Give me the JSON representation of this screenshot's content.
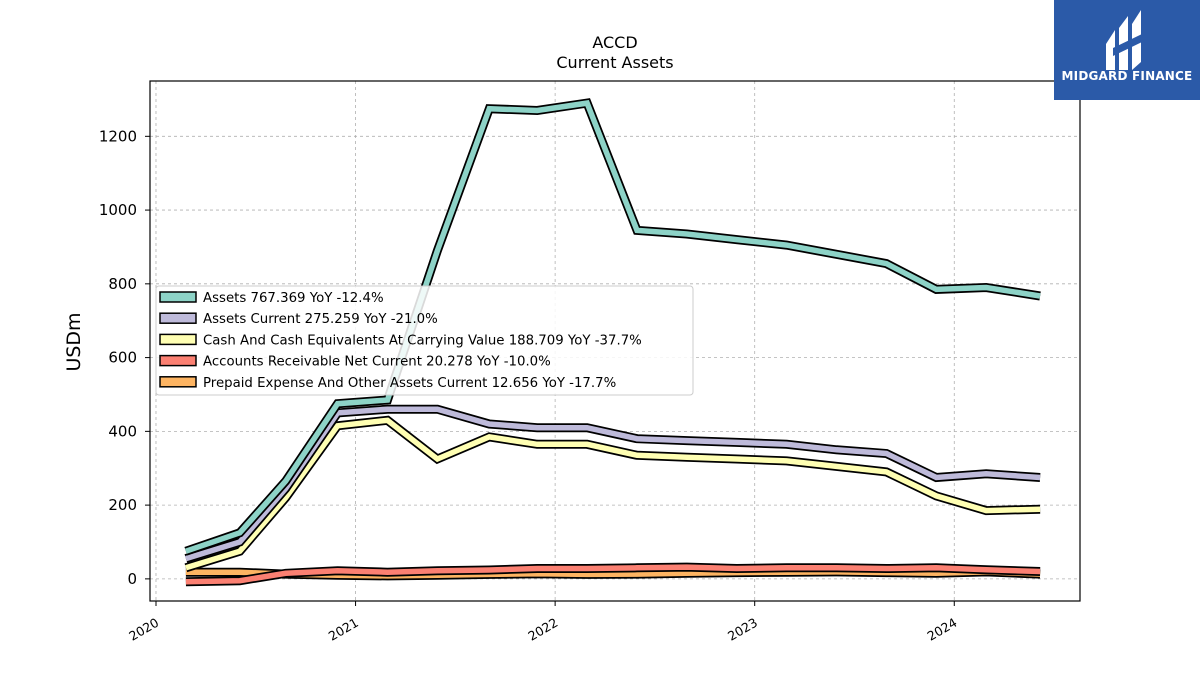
{
  "chart_data": {
    "type": "line",
    "title": "ACCD",
    "subtitle": "Current  Assets",
    "ylabel": "USDm",
    "xlabel": "",
    "ylim": [
      -60,
      1350
    ],
    "xlim": [
      2019.97,
      2024.63
    ],
    "yticks": [
      0,
      200,
      400,
      600,
      800,
      1000,
      1200
    ],
    "xticks": [
      {
        "value": 2020,
        "label": "2020"
      },
      {
        "value": 2021,
        "label": "2021"
      },
      {
        "value": 2022,
        "label": "2022"
      },
      {
        "value": 2023,
        "label": "2023"
      },
      {
        "value": 2024,
        "label": "2024"
      }
    ],
    "grid": true,
    "legend_position": "center-left",
    "x": [
      2020.15,
      2020.42,
      2020.65,
      2020.91,
      2021.16,
      2021.41,
      2021.67,
      2021.91,
      2022.16,
      2022.41,
      2022.66,
      2022.91,
      2023.16,
      2023.41,
      2023.66,
      2023.91,
      2024.16,
      2024.43
    ],
    "series": [
      {
        "name": "Assets",
        "label": "Assets  767.369 YoY -12.4%",
        "color": "#8dd3c7",
        "values": [
          75,
          125,
          265,
          475,
          485,
          890,
          1275,
          1270,
          1290,
          945,
          935,
          920,
          905,
          880,
          855,
          785,
          790,
          767
        ]
      },
      {
        "name": "Assets Current",
        "label": "Assets Current  275.259 YoY -21.0%",
        "color": "#bebada",
        "values": [
          55,
          100,
          245,
          450,
          460,
          460,
          420,
          410,
          410,
          380,
          375,
          370,
          365,
          350,
          340,
          275,
          285,
          275
        ]
      },
      {
        "name": "Cash And Cash Equivalents At Carrying Value",
        "label": "Cash And Cash Equivalents At Carrying Value  188.709 YoY -37.7%",
        "color": "#ffffb3",
        "values": [
          30,
          75,
          220,
          415,
          430,
          325,
          385,
          365,
          365,
          335,
          330,
          325,
          320,
          305,
          290,
          225,
          185,
          189
        ]
      },
      {
        "name": "Accounts Receivable Net Current",
        "label": "Accounts Receivable Net Current  20.278 YoY -10.0%",
        "color": "#fb8072",
        "values": [
          -8,
          -5,
          15,
          22,
          18,
          22,
          24,
          28,
          28,
          30,
          32,
          28,
          30,
          30,
          28,
          30,
          25,
          20
        ]
      },
      {
        "name": "Prepaid Expense And Other Assets Current",
        "label": "Prepaid Expense And Other Assets Current  12.656 YoY -17.7%",
        "color": "#fdb462",
        "values": [
          18,
          18,
          13,
          10,
          8,
          10,
          12,
          14,
          12,
          13,
          15,
          17,
          18,
          19,
          17,
          15,
          19,
          13
        ]
      }
    ]
  },
  "logo": {
    "text": "MIDGARD FINANCE",
    "bg_color": "#2b5aa8"
  }
}
